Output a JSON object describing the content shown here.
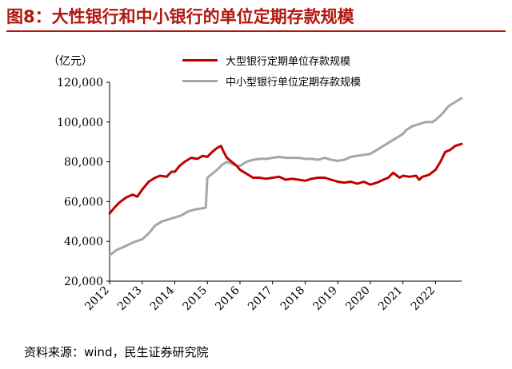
{
  "title": "图8：大性银行和中小银行的单位定期存款规模",
  "unit_label": "（亿元）",
  "source": "资料来源：wind，民生证券研究院",
  "colors": {
    "title": "#b1170f",
    "large_bank": "#c00000",
    "small_bank": "#a6a6a6"
  },
  "chart_data": {
    "type": "line",
    "ylim": [
      20000,
      120000
    ],
    "xlim": [
      2012,
      2022.8
    ],
    "y_ticks": [
      20000,
      40000,
      60000,
      80000,
      100000,
      120000
    ],
    "y_tick_labels": [
      "20,000",
      "40,000",
      "60,000",
      "80,000",
      "100,000",
      "120,000"
    ],
    "x_ticks": [
      2012,
      2013,
      2014,
      2015,
      2016,
      2017,
      2018,
      2019,
      2020,
      2021,
      2022
    ],
    "x_tick_labels": [
      "2012",
      "2013",
      "2014",
      "2015",
      "2016",
      "2017",
      "2018",
      "2019",
      "2020",
      "2021",
      "2022"
    ],
    "grid": false,
    "legend_position": "top-right",
    "series": [
      {
        "name": "大型银行定期单位存款规模",
        "x": [
          2012.0,
          2012.15,
          2012.3,
          2012.5,
          2012.7,
          2012.85,
          2013.0,
          2013.2,
          2013.4,
          2013.55,
          2013.75,
          2013.9,
          2014.0,
          2014.15,
          2014.3,
          2014.5,
          2014.7,
          2014.85,
          2015.0,
          2015.15,
          2015.3,
          2015.42,
          2015.5,
          2015.6,
          2015.75,
          2015.9,
          2016.0,
          2016.2,
          2016.4,
          2016.6,
          2016.8,
          2017.0,
          2017.2,
          2017.4,
          2017.6,
          2017.8,
          2018.0,
          2018.2,
          2018.4,
          2018.6,
          2018.8,
          2019.0,
          2019.2,
          2019.4,
          2019.6,
          2019.8,
          2020.0,
          2020.2,
          2020.4,
          2020.55,
          2020.7,
          2020.9,
          2021.0,
          2021.2,
          2021.4,
          2021.5,
          2021.6,
          2021.8,
          2022.0,
          2022.15,
          2022.3,
          2022.45,
          2022.6,
          2022.8
        ],
        "values": [
          54000,
          57000,
          59500,
          62000,
          63500,
          62500,
          66000,
          70000,
          72000,
          73000,
          72500,
          75000,
          75000,
          78000,
          80000,
          82000,
          81500,
          83000,
          82500,
          85000,
          87000,
          88000,
          85000,
          82000,
          80000,
          78000,
          76000,
          74000,
          72000,
          72000,
          71500,
          72000,
          72500,
          71000,
          71500,
          71000,
          70500,
          71500,
          72000,
          72000,
          71000,
          70000,
          69500,
          70000,
          69000,
          70000,
          68500,
          69500,
          71000,
          72000,
          74500,
          72000,
          73000,
          72500,
          73000,
          71000,
          72500,
          73500,
          76000,
          80000,
          85000,
          86000,
          88000,
          89000
        ]
      },
      {
        "name": "中小型银行单位定期存款规模",
        "x": [
          2012.0,
          2012.2,
          2012.4,
          2012.6,
          2012.8,
          2013.0,
          2013.2,
          2013.4,
          2013.6,
          2013.8,
          2014.0,
          2014.2,
          2014.4,
          2014.6,
          2014.8,
          2014.95,
          2015.0,
          2015.15,
          2015.3,
          2015.45,
          2015.6,
          2015.75,
          2015.9,
          2016.0,
          2016.2,
          2016.4,
          2016.6,
          2016.8,
          2017.0,
          2017.2,
          2017.4,
          2017.6,
          2017.8,
          2018.0,
          2018.2,
          2018.4,
          2018.6,
          2018.8,
          2019.0,
          2019.2,
          2019.4,
          2019.6,
          2019.8,
          2020.0,
          2020.2,
          2020.4,
          2020.6,
          2020.8,
          2021.0,
          2021.1,
          2021.3,
          2021.5,
          2021.7,
          2021.9,
          2022.0,
          2022.2,
          2022.4,
          2022.6,
          2022.8
        ],
        "values": [
          33000,
          35500,
          37000,
          38500,
          40000,
          41000,
          44000,
          48000,
          50000,
          51000,
          52000,
          53000,
          55000,
          56000,
          56500,
          57000,
          72000,
          74000,
          76000,
          78500,
          80000,
          79000,
          78000,
          78000,
          80000,
          81000,
          81500,
          81500,
          82000,
          82500,
          82000,
          82000,
          82000,
          81500,
          81500,
          81000,
          82000,
          81000,
          80500,
          81000,
          82500,
          83000,
          83500,
          84000,
          86000,
          88000,
          90000,
          92000,
          94000,
          96000,
          98000,
          99000,
          100000,
          100000,
          101000,
          104000,
          108000,
          110000,
          112000
        ]
      }
    ]
  }
}
